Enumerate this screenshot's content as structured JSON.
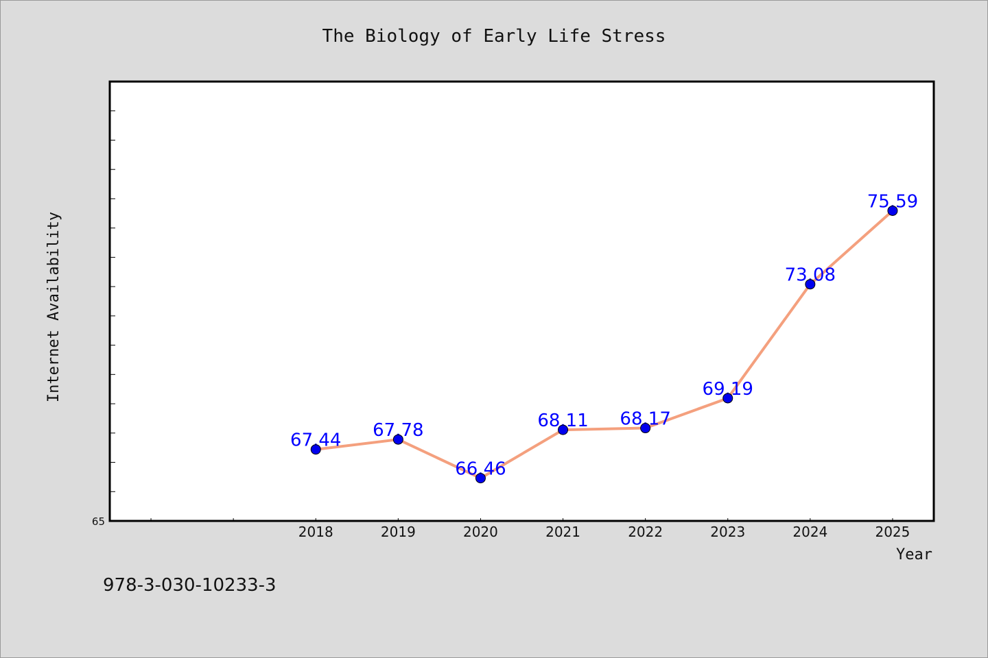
{
  "chart_data": {
    "type": "line",
    "title": "The Biology of Early Life Stress",
    "xlabel": "Year",
    "ylabel": "Internet Availability",
    "categories": [
      "2018",
      "2019",
      "2020",
      "2021",
      "2022",
      "2023",
      "2024",
      "2025"
    ],
    "x_tick_labels": [
      "2018",
      "2019",
      "2020",
      "2021",
      "2022",
      "2023",
      "2024",
      "2025"
    ],
    "y_tick_labels": [
      "65"
    ],
    "values": [
      67.44,
      67.78,
      66.46,
      68.11,
      68.17,
      69.19,
      73.08,
      75.59
    ],
    "data_labels": [
      "67.44",
      "67.78",
      "66.46",
      "68.11",
      "68.17",
      "69.19",
      "73.08",
      "75.59"
    ],
    "ylim": [
      65,
      80
    ],
    "grid": false,
    "line_color": "#f4a07e",
    "marker_color": "#0000ee",
    "label_color": "#0000ff"
  },
  "footer_text": "978-3-030-10233-3"
}
